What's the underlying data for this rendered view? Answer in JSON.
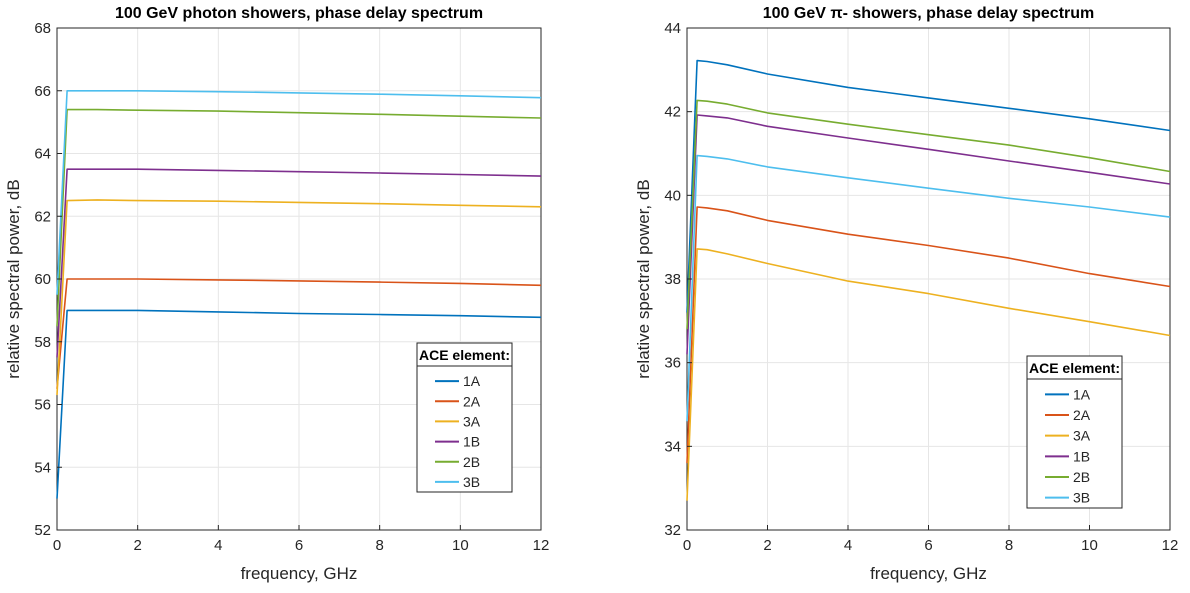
{
  "legend_common_title": "ACE element:",
  "chart_data": [
    {
      "type": "line",
      "title": "100 GeV photon showers, phase delay spectrum",
      "xlabel": "frequency, GHz",
      "ylabel": "relative spectral power, dB",
      "xlim": [
        0,
        12
      ],
      "ylim": [
        52,
        68
      ],
      "xticks": [
        0,
        2,
        4,
        6,
        8,
        10,
        12
      ],
      "yticks": [
        52,
        54,
        56,
        58,
        60,
        62,
        64,
        66,
        68
      ],
      "grid": true,
      "legend": {
        "title": "ACE element:",
        "position": "lower-right"
      },
      "series": [
        {
          "name": "1A",
          "color": "#0072BD",
          "x": [
            0,
            0.25,
            1,
            2,
            4,
            6,
            8,
            10,
            12
          ],
          "y": [
            53.0,
            59.0,
            59.0,
            59.0,
            58.95,
            58.9,
            58.87,
            58.83,
            58.78
          ]
        },
        {
          "name": "2A",
          "color": "#D95319",
          "x": [
            0,
            0.25,
            1,
            2,
            4,
            6,
            8,
            10,
            12
          ],
          "y": [
            56.5,
            60.0,
            60.0,
            60.0,
            59.97,
            59.94,
            59.9,
            59.86,
            59.8
          ]
        },
        {
          "name": "3A",
          "color": "#EDB120",
          "x": [
            0,
            0.25,
            1,
            2,
            4,
            6,
            8,
            10,
            12
          ],
          "y": [
            56.3,
            62.5,
            62.52,
            62.5,
            62.48,
            62.44,
            62.4,
            62.35,
            62.3
          ]
        },
        {
          "name": "1B",
          "color": "#7E2F8E",
          "x": [
            0,
            0.25,
            1,
            2,
            4,
            6,
            8,
            10,
            12
          ],
          "y": [
            57.5,
            63.5,
            63.5,
            63.5,
            63.46,
            63.42,
            63.38,
            63.33,
            63.28
          ]
        },
        {
          "name": "2B",
          "color": "#77AC30",
          "x": [
            0,
            0.25,
            1,
            2,
            4,
            6,
            8,
            10,
            12
          ],
          "y": [
            58.5,
            65.4,
            65.4,
            65.38,
            65.35,
            65.3,
            65.25,
            65.19,
            65.13
          ]
        },
        {
          "name": "3B",
          "color": "#4DBEEE",
          "x": [
            0,
            0.25,
            1,
            2,
            4,
            6,
            8,
            10,
            12
          ],
          "y": [
            59.5,
            66.0,
            66.0,
            66.0,
            65.97,
            65.93,
            65.89,
            65.84,
            65.78
          ]
        }
      ]
    },
    {
      "type": "line",
      "title": "100 GeV π-  showers, phase delay spectrum",
      "xlabel": "frequency, GHz",
      "ylabel": "relative spectral power, dB",
      "xlim": [
        0,
        12
      ],
      "ylim": [
        32,
        44
      ],
      "xticks": [
        0,
        2,
        4,
        6,
        8,
        10,
        12
      ],
      "yticks": [
        32,
        34,
        36,
        38,
        40,
        42,
        44
      ],
      "grid": true,
      "legend": {
        "title": "ACE element:",
        "position": "lower-right"
      },
      "series": [
        {
          "name": "1A",
          "color": "#0072BD",
          "x": [
            0,
            0.25,
            0.5,
            1,
            2,
            4,
            6,
            8,
            10,
            12
          ],
          "y": [
            37.2,
            43.22,
            43.2,
            43.12,
            42.9,
            42.58,
            42.33,
            42.08,
            41.83,
            41.55
          ]
        },
        {
          "name": "2A",
          "color": "#D95319",
          "x": [
            0,
            0.25,
            0.5,
            1,
            2,
            4,
            6,
            8,
            10,
            12
          ],
          "y": [
            33.6,
            39.72,
            39.7,
            39.63,
            39.4,
            39.07,
            38.8,
            38.5,
            38.13,
            37.82
          ]
        },
        {
          "name": "3A",
          "color": "#EDB120",
          "x": [
            0,
            0.25,
            0.5,
            1,
            2,
            4,
            6,
            8,
            10,
            12
          ],
          "y": [
            32.7,
            38.72,
            38.7,
            38.6,
            38.37,
            37.95,
            37.65,
            37.3,
            36.98,
            36.65
          ]
        },
        {
          "name": "1B",
          "color": "#7E2F8E",
          "x": [
            0,
            0.25,
            0.5,
            1,
            2,
            4,
            6,
            8,
            10,
            12
          ],
          "y": [
            36.2,
            41.92,
            41.9,
            41.85,
            41.65,
            41.37,
            41.1,
            40.82,
            40.55,
            40.27
          ]
        },
        {
          "name": "2B",
          "color": "#77AC30",
          "x": [
            0,
            0.25,
            0.5,
            1,
            2,
            4,
            6,
            8,
            10,
            12
          ],
          "y": [
            36.8,
            42.27,
            42.25,
            42.18,
            41.97,
            41.7,
            41.45,
            41.2,
            40.9,
            40.57
          ]
        },
        {
          "name": "3B",
          "color": "#4DBEEE",
          "x": [
            0,
            0.25,
            0.5,
            1,
            2,
            4,
            6,
            8,
            10,
            12
          ],
          "y": [
            34.6,
            40.95,
            40.93,
            40.87,
            40.68,
            40.42,
            40.17,
            39.93,
            39.72,
            39.48
          ]
        }
      ]
    }
  ]
}
